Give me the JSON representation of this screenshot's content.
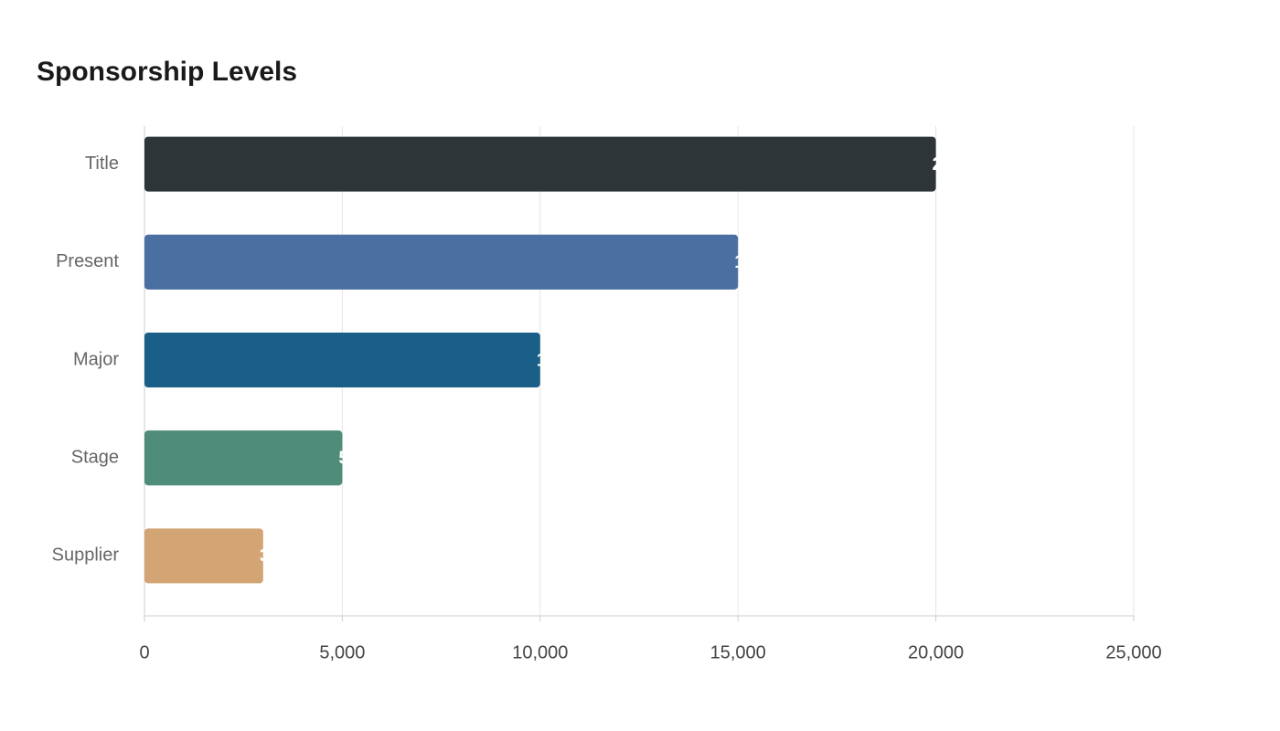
{
  "chart_data": {
    "type": "bar",
    "orientation": "horizontal",
    "title": "Sponsorship Levels",
    "categories": [
      "Title",
      "Present",
      "Major",
      "Stage",
      "Supplier"
    ],
    "values": [
      20000,
      15000,
      10000,
      5000,
      3000
    ],
    "colors": [
      "#2e3538",
      "#4a6fa1",
      "#1a5f87",
      "#4f8c7a",
      "#d4a574"
    ],
    "xlim": [
      0,
      25000
    ],
    "xticks": [
      0,
      {
        "value": 5000,
        "label": "5,000"
      },
      {
        "value": 10000,
        "label": "10,000"
      },
      {
        "value": 15000,
        "label": "15,000"
      },
      {
        "value": 20000,
        "label": "20,000"
      },
      {
        "value": 25000,
        "label": "25,000"
      }
    ],
    "grid": true
  }
}
